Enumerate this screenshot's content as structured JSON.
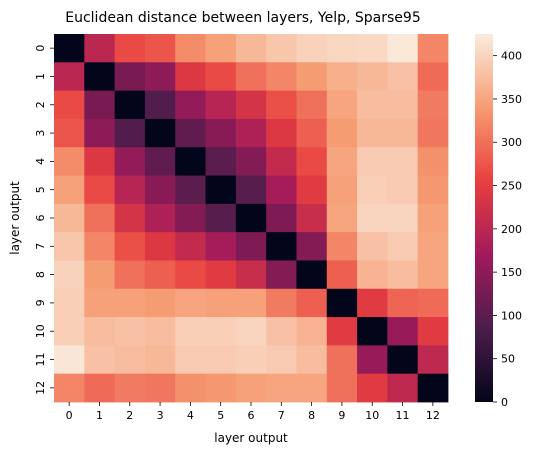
{
  "chart_data": {
    "type": "heatmap",
    "title": "Euclidean distance between layers, Yelp, Sparse95",
    "xlabel": "layer output",
    "ylabel": "layer output",
    "x_categories": [
      "0",
      "1",
      "2",
      "3",
      "4",
      "5",
      "6",
      "7",
      "8",
      "9",
      "10",
      "11",
      "12"
    ],
    "y_categories": [
      "0",
      "1",
      "2",
      "3",
      "4",
      "5",
      "6",
      "7",
      "8",
      "9",
      "10",
      "11",
      "12"
    ],
    "values": [
      [
        0,
        200,
        265,
        275,
        325,
        345,
        370,
        385,
        398,
        402,
        405,
        422,
        320
      ],
      [
        200,
        0,
        130,
        150,
        240,
        265,
        300,
        320,
        340,
        360,
        370,
        380,
        295
      ],
      [
        265,
        130,
        0,
        90,
        155,
        195,
        230,
        270,
        300,
        350,
        375,
        375,
        310
      ],
      [
        275,
        150,
        90,
        0,
        105,
        145,
        185,
        240,
        285,
        340,
        370,
        370,
        305
      ],
      [
        325,
        240,
        155,
        105,
        0,
        100,
        140,
        210,
        265,
        350,
        390,
        390,
        330
      ],
      [
        345,
        265,
        195,
        145,
        100,
        0,
        95,
        175,
        245,
        345,
        395,
        390,
        335
      ],
      [
        370,
        300,
        230,
        185,
        140,
        95,
        0,
        135,
        215,
        350,
        400,
        400,
        345
      ],
      [
        385,
        320,
        270,
        240,
        210,
        175,
        135,
        0,
        140,
        320,
        380,
        390,
        350
      ],
      [
        398,
        340,
        300,
        285,
        265,
        245,
        215,
        140,
        0,
        285,
        365,
        375,
        350
      ],
      [
        395,
        345,
        345,
        340,
        350,
        345,
        345,
        310,
        285,
        0,
        245,
        290,
        295
      ],
      [
        395,
        375,
        380,
        375,
        395,
        395,
        400,
        380,
        365,
        245,
        0,
        160,
        245
      ],
      [
        420,
        380,
        375,
        370,
        390,
        390,
        395,
        390,
        375,
        300,
        160,
        0,
        205
      ],
      [
        320,
        295,
        310,
        305,
        330,
        335,
        345,
        350,
        350,
        300,
        245,
        205,
        0
      ]
    ],
    "colorbar": {
      "min": 0,
      "max": 425,
      "ticks": [
        0,
        50,
        100,
        150,
        200,
        250,
        300,
        350,
        400
      ]
    },
    "colormap": "rocket",
    "colormap_stops": [
      "#03051A",
      "#4C1D4B",
      "#A11A5B",
      "#E83F3F",
      "#F69C73",
      "#FAEBDD"
    ],
    "grid": false
  }
}
